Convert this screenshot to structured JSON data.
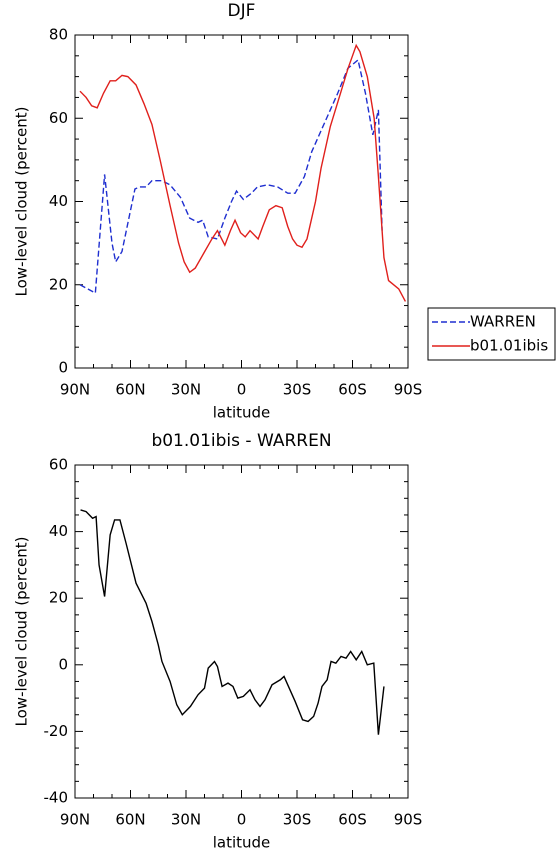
{
  "chart_data": [
    {
      "type": "line",
      "title": "DJF",
      "xlabel": "latitude",
      "ylabel": "Low-level cloud (percent)",
      "xlim": [
        90,
        -90
      ],
      "xticks": [
        {
          "value": 90,
          "label": "90N"
        },
        {
          "value": 60,
          "label": "60N"
        },
        {
          "value": 30,
          "label": "30N"
        },
        0,
        {
          "value": -30,
          "label": "30S"
        },
        {
          "value": -60,
          "label": "60S"
        },
        {
          "value": -90,
          "label": "90S"
        }
      ],
      "ylim": [
        0,
        80
      ],
      "yticks": [
        0,
        20,
        40,
        60,
        80
      ],
      "legend": "right",
      "series": [
        {
          "name": "WARREN",
          "color": "#1f2fd0",
          "dash": "dashed",
          "x": [
            87.3,
            79,
            74,
            70,
            68,
            64.6,
            57.6,
            55,
            51.6,
            48.4,
            43,
            38.6,
            33,
            28,
            23.5,
            21,
            18,
            13,
            9,
            5.4,
            2.7,
            -1,
            -5.4,
            -8.6,
            -14,
            -19.5,
            -25,
            -29,
            -34,
            -38,
            -42,
            -48,
            -52,
            -57.5,
            -63,
            -67,
            -71,
            -74,
            -76
          ],
          "values": [
            20,
            18,
            46.5,
            30,
            25.5,
            28,
            43,
            43.5,
            43.5,
            45,
            45,
            44,
            41,
            36,
            35,
            35.5,
            31.5,
            31,
            36,
            40,
            42.5,
            40.5,
            42,
            43.5,
            44,
            43.5,
            42,
            42,
            46,
            52,
            56,
            62,
            66,
            72,
            74,
            66,
            56,
            62,
            33
          ]
        },
        {
          "name": "b01.01ibis",
          "color": "#e0201c",
          "dash": "solid",
          "x": [
            87.3,
            84,
            81,
            78,
            74.6,
            71,
            68,
            64.6,
            61.4,
            57,
            52.7,
            48.4,
            44,
            38.6,
            34,
            31,
            28,
            25,
            20.5,
            16,
            13,
            9,
            6,
            3.5,
            0.5,
            -2,
            -4.6,
            -9,
            -11.5,
            -15,
            -18.6,
            -22,
            -25,
            -27.6,
            -30,
            -32.7,
            -35.4,
            -40,
            -43,
            -48,
            -53.5,
            -57.6,
            -60,
            -62,
            -64,
            -68,
            -71.7,
            -74,
            -77,
            -79.5,
            -85,
            -88.6
          ],
          "values": [
            66.5,
            65,
            63,
            62.5,
            66,
            69,
            69,
            70.3,
            70,
            68,
            63.5,
            58.5,
            50,
            39,
            30,
            25.5,
            23,
            24,
            27.5,
            31,
            33,
            29.5,
            33,
            35.5,
            32.5,
            31.5,
            33,
            31,
            34,
            38,
            39,
            38.5,
            34,
            31,
            29.5,
            29,
            31,
            40,
            48,
            58,
            66,
            72,
            75,
            77.5,
            76,
            70,
            60,
            46,
            26.5,
            21,
            19,
            16
          ]
        }
      ]
    },
    {
      "type": "line",
      "title": "b01.01ibis - WARREN",
      "xlabel": "latitude",
      "ylabel": "Low-level cloud (percent)",
      "xlim": [
        90,
        -90
      ],
      "xticks": [
        {
          "value": 90,
          "label": "90N"
        },
        {
          "value": 60,
          "label": "60N"
        },
        {
          "value": 30,
          "label": "30N"
        },
        0,
        {
          "value": -30,
          "label": "30S"
        },
        {
          "value": -60,
          "label": "60S"
        },
        {
          "value": -90,
          "label": "90S"
        }
      ],
      "ylim": [
        -40,
        60
      ],
      "yticks": [
        -40,
        -20,
        0,
        20,
        40,
        60
      ],
      "series": [
        {
          "color": "#000000",
          "dash": "solid",
          "x": [
            87,
            84,
            80.5,
            78.6,
            77,
            74,
            71,
            68.6,
            65.7,
            62.4,
            57,
            51.6,
            48.4,
            45,
            43,
            38.6,
            35,
            32,
            27.6,
            23.5,
            20,
            18,
            14.6,
            13,
            10.5,
            7.3,
            4.6,
            2,
            -1,
            -4.6,
            -7.3,
            -10,
            -12.7,
            -16.5,
            -21,
            -23,
            -25,
            -29,
            -33,
            -36,
            -39,
            -41.4,
            -43.5,
            -46.3,
            -48.4,
            -51,
            -53.8,
            -56.5,
            -59,
            -62,
            -65,
            -68,
            -71.5,
            -74,
            -77
          ],
          "values": [
            46.5,
            46,
            44,
            44.5,
            30,
            20.5,
            39,
            43.5,
            43.5,
            36.5,
            24.5,
            18.5,
            13,
            6,
            1,
            -5,
            -12,
            -15,
            -12.5,
            -9,
            -7,
            -1,
            1,
            -0.5,
            -6.5,
            -5.5,
            -6.5,
            -10,
            -9.5,
            -7.5,
            -10.5,
            -12.5,
            -10.5,
            -6,
            -4.5,
            -3.5,
            -6,
            -11,
            -16.5,
            -17,
            -15.5,
            -11.5,
            -6.5,
            -4.5,
            1,
            0.5,
            2.5,
            2,
            4,
            1.5,
            4,
            0,
            0.5,
            -21,
            -6.5
          ]
        }
      ]
    }
  ]
}
